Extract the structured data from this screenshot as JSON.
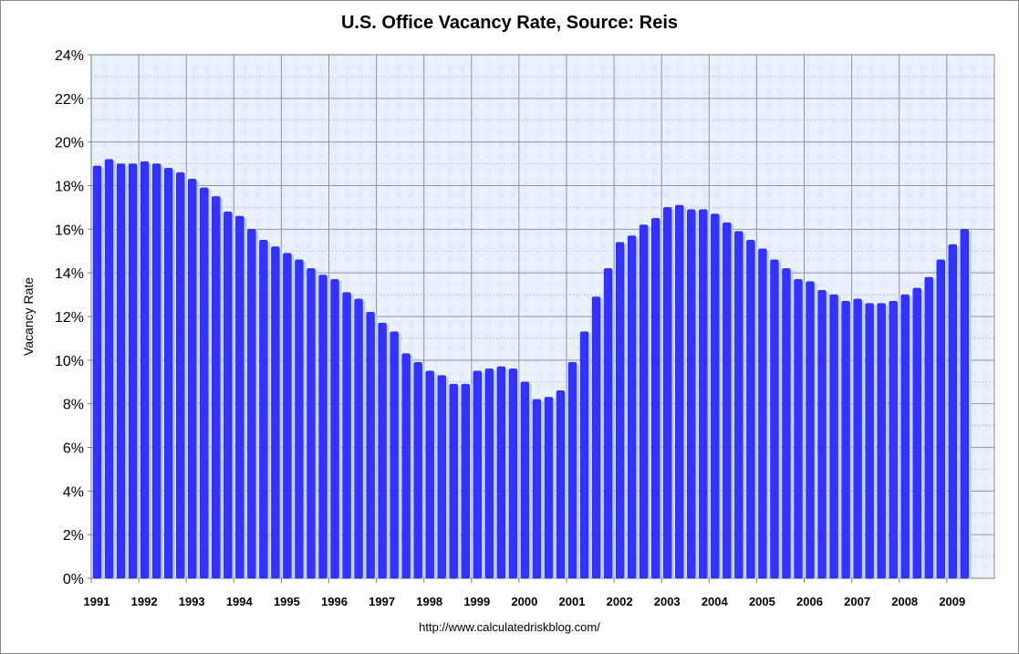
{
  "footer": {
    "url": "http://www.calculatedriskblog.com/"
  },
  "colors": {
    "bar": "#3333ff",
    "bar_shadow": "#b8c6e0",
    "plot_bg": "#e8f0fa",
    "grid": "#a0a4b0"
  },
  "chart_data": {
    "type": "bar",
    "title": "U.S. Office Vacancy Rate, Source: Reis",
    "xlabel": "",
    "ylabel": "Vacancy Rate",
    "ylim": [
      0,
      24
    ],
    "yticks": [
      "0%",
      "2%",
      "4%",
      "6%",
      "8%",
      "10%",
      "12%",
      "14%",
      "16%",
      "18%",
      "20%",
      "22%",
      "24%"
    ],
    "year_labels": [
      "1991",
      "1992",
      "1993",
      "1994",
      "1995",
      "1996",
      "1997",
      "1998",
      "1999",
      "2000",
      "2001",
      "2002",
      "2003",
      "2004",
      "2005",
      "2006",
      "2007",
      "2008",
      "2009"
    ],
    "quarters_per_year": 4,
    "grid": true,
    "series": [
      {
        "values": [
          18.9,
          19.2,
          19.0,
          19.0,
          19.1,
          19.0,
          18.8,
          18.6,
          18.3,
          17.9,
          17.5,
          16.8,
          16.6,
          16.0,
          15.5,
          15.2,
          14.9,
          14.6,
          14.2,
          13.9,
          13.7,
          13.1,
          12.8,
          12.2,
          11.7,
          11.3,
          10.3,
          9.9,
          9.5,
          9.3,
          8.9,
          8.9,
          9.5,
          9.6,
          9.7,
          9.6,
          9.0,
          8.2,
          8.3,
          8.6,
          9.9,
          11.3,
          12.9,
          14.2,
          15.4,
          15.7,
          16.2,
          16.5,
          17.0,
          17.1,
          16.9,
          16.9,
          16.7,
          16.3,
          15.9,
          15.5,
          15.1,
          14.6,
          14.2,
          13.7,
          13.6,
          13.2,
          13.0,
          12.7,
          12.8,
          12.6,
          12.6,
          12.7,
          13.0,
          13.3,
          13.8,
          14.6,
          15.3,
          16.0
        ]
      }
    ]
  }
}
